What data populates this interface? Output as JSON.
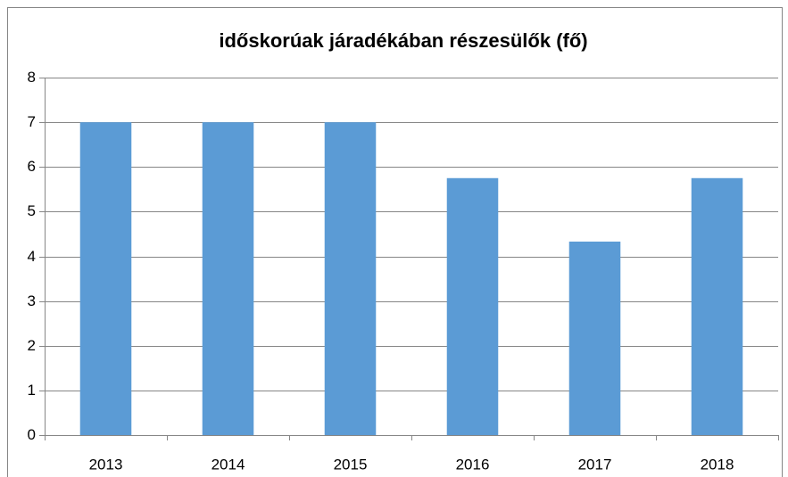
{
  "chart_data": {
    "type": "bar",
    "title": "időskorúak járadékában részesülők (fő)",
    "categories": [
      "2013",
      "2014",
      "2015",
      "2016",
      "2017",
      "2018"
    ],
    "values": [
      7,
      7,
      7,
      5.75,
      4.33,
      5.75
    ],
    "color": "#5b9bd5",
    "ylim": [
      0,
      8
    ],
    "yticks": [
      0,
      1,
      2,
      3,
      4,
      5,
      6,
      7,
      8
    ],
    "grid": true
  }
}
